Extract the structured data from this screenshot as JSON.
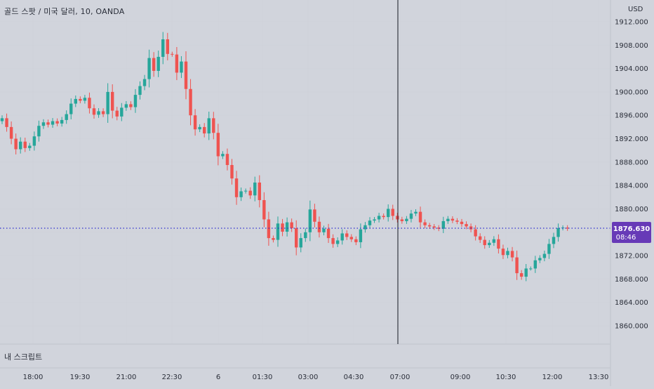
{
  "header": {
    "symbol_title": "골드 스팟 / 미국 달러, 10, OANDA"
  },
  "price_axis": {
    "unit": "USD",
    "ticks": [
      "1912.000",
      "1908.000",
      "1904.000",
      "1900.000",
      "1896.000",
      "1892.000",
      "1888.000",
      "1884.000",
      "1880.000",
      "1876.000",
      "1872.000",
      "1868.000",
      "1864.000",
      "1860.000"
    ],
    "last_price_label": "1876.630",
    "countdown_label": "08:46"
  },
  "time_axis": {
    "ticks": [
      "18:00",
      "19:30",
      "21:00",
      "22:30",
      "6",
      "01:30",
      "03:00",
      "04:30",
      "07:00",
      "09:00",
      "10:30",
      "12:00",
      "13:30"
    ]
  },
  "indicator_pane": {
    "label": "내 스크립트"
  },
  "colors": {
    "background": "#d1d4dc",
    "up": "#26a69a",
    "down": "#ef5350",
    "price_line": "#2f2fcf",
    "last_price_tag": "#673ab7",
    "crosshair": "#131722"
  },
  "chart_data": {
    "type": "candlestick",
    "title": "골드 스팟 / 미국 달러, 10, OANDA",
    "y_unit": "USD",
    "ylim": [
      1857.5,
      1914
    ],
    "last_price": 1876.63,
    "y_ticks": [
      1912,
      1908,
      1904,
      1900,
      1896,
      1892,
      1888,
      1884,
      1880,
      1876,
      1872,
      1868,
      1864,
      1860
    ],
    "x_tick_labels": [
      "18:00",
      "19:30",
      "21:00",
      "22:30",
      "6",
      "01:30",
      "03:00",
      "04:30",
      "07:00",
      "09:00",
      "10:30",
      "12:00",
      "13:30"
    ],
    "closes": [
      1895.5,
      1894.0,
      1892.0,
      1890.2,
      1891.5,
      1890.4,
      1890.8,
      1892.4,
      1894.2,
      1894.8,
      1894.4,
      1895.0,
      1894.6,
      1895.2,
      1896.2,
      1898.0,
      1898.8,
      1898.5,
      1899.0,
      1897.2,
      1896.1,
      1896.7,
      1896.2,
      1900.0,
      1896.8,
      1895.8,
      1897.3,
      1897.9,
      1897.4,
      1899.5,
      1901.0,
      1902.2,
      1905.8,
      1903.6,
      1906.0,
      1909.0,
      1906.5,
      1906.4,
      1903.3,
      1905.2,
      1900.5,
      1896.0,
      1893.6,
      1894.0,
      1892.9,
      1895.5,
      1893.0,
      1889.0,
      1889.4,
      1887.5,
      1885.2,
      1882.0,
      1883.0,
      1883.1,
      1882.3,
      1884.5,
      1881.5,
      1878.2,
      1875.0,
      1874.7,
      1877.5,
      1876.1,
      1877.7,
      1876.7,
      1873.4,
      1875.0,
      1876.0,
      1879.9,
      1877.8,
      1876.0,
      1876.6,
      1875.0,
      1874.0,
      1874.6,
      1875.8,
      1875.2,
      1874.8,
      1874.3,
      1876.5,
      1877.2,
      1878.0,
      1878.2,
      1878.8,
      1878.6,
      1880.0,
      1878.8,
      1878.2,
      1877.9,
      1878.3,
      1879.2,
      1879.5,
      1877.7,
      1877.2,
      1877.0,
      1876.8,
      1876.6,
      1877.9,
      1878.3,
      1878.0,
      1877.8,
      1877.4,
      1877.0,
      1876.5,
      1875.3,
      1874.7,
      1873.8,
      1874.2,
      1874.8,
      1873.2,
      1872.1,
      1872.8,
      1871.7,
      1869.0,
      1868.4,
      1869.8,
      1869.8,
      1871.2,
      1871.6,
      1872.3,
      1874.0,
      1875.2,
      1876.7,
      1876.8,
      1876.63
    ],
    "first_open": 1895.0
  }
}
